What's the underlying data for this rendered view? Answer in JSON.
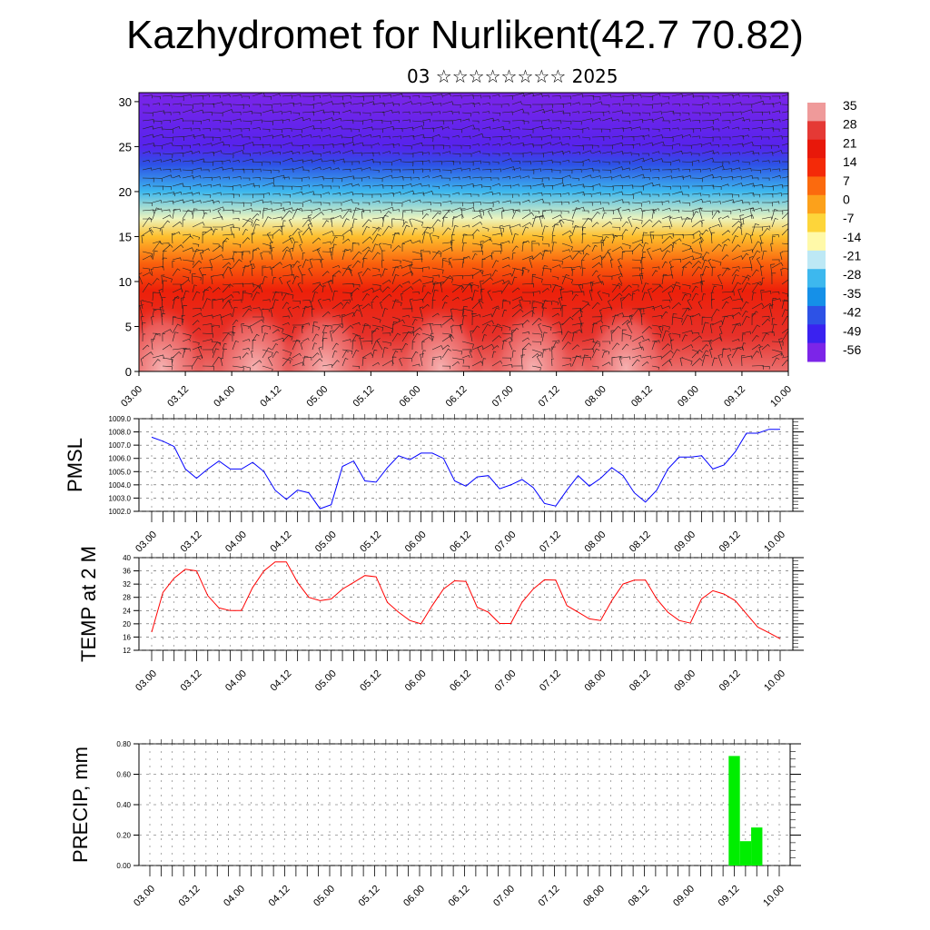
{
  "title": "Kazhydromet for Nurlikent(42.7 70.82)",
  "subtitle": "03 ☆☆☆☆☆☆☆☆ 2025",
  "chart_data": [
    {
      "type": "heatmap",
      "name": "vertical cross-section",
      "x_ticks": [
        "03.00",
        "03.12",
        "04.00",
        "04.12",
        "05.00",
        "05.12",
        "06.00",
        "06.12",
        "07.00",
        "07.12",
        "08.00",
        "08.12",
        "09.00",
        "09.12",
        "10.00"
      ],
      "ylim": [
        0,
        31
      ],
      "y_ticks": [
        "0",
        "5",
        "10",
        "15",
        "20",
        "25",
        "30"
      ],
      "colorbar": {
        "labels": [
          "35",
          "28",
          "21",
          "14",
          "7",
          "0",
          "-7",
          "-14",
          "-21",
          "-28",
          "-35",
          "-42",
          "-49",
          "-56"
        ],
        "colors": [
          "#ef9a9a",
          "#e53935",
          "#e8180a",
          "#f42a08",
          "#fb6a0e",
          "#fca11b",
          "#fdd53a",
          "#fff9a8",
          "#bde8f5",
          "#3db8ee",
          "#1590e8",
          "#2d52e6",
          "#3a22f0",
          "#7c25e8"
        ]
      },
      "temperature_bands": [
        {
          "height": 0,
          "value": 32
        },
        {
          "height": 4,
          "value": 26
        },
        {
          "height": 9,
          "value": 18
        },
        {
          "height": 12,
          "value": 8
        },
        {
          "height": 15,
          "value": -4
        },
        {
          "height": 17,
          "value": -16
        },
        {
          "height": 20,
          "value": -28
        },
        {
          "height": 23,
          "value": -42
        },
        {
          "height": 25,
          "value": -52
        },
        {
          "height": 31,
          "value": -58
        }
      ],
      "warm_cells_x": [
        "03.06",
        "04.06",
        "05.00",
        "06.06",
        "07.06",
        "08.06"
      ]
    },
    {
      "type": "line",
      "name": "PMSL",
      "ylabel": "PMSL",
      "ylim": [
        1002.0,
        1009.0
      ],
      "y_ticks": [
        "1002.0",
        "1003.0",
        "1004.0",
        "1005.0",
        "1006.0",
        "1007.0",
        "1008.0",
        "1009.0"
      ],
      "x_ticks": [
        "03.00",
        "03.12",
        "04.00",
        "04.12",
        "05.00",
        "05.12",
        "06.00",
        "06.12",
        "07.00",
        "07.12",
        "08.00",
        "08.12",
        "09.00",
        "09.12",
        "10.00"
      ],
      "color": "#0000ff",
      "values": [
        1007.6,
        1007.3,
        1006.9,
        1005.2,
        1004.5,
        1005.2,
        1005.8,
        1005.2,
        1005.2,
        1005.7,
        1005.0,
        1003.6,
        1002.9,
        1003.6,
        1003.4,
        1002.2,
        1002.5,
        1005.4,
        1005.8,
        1004.3,
        1004.2,
        1005.3,
        1006.2,
        1005.9,
        1006.4,
        1006.4,
        1006.0,
        1004.3,
        1003.9,
        1004.6,
        1004.7,
        1003.7,
        1004.0,
        1004.4,
        1003.8,
        1002.6,
        1002.4,
        1003.6,
        1004.7,
        1003.9,
        1004.5,
        1005.3,
        1004.7,
        1003.4,
        1002.7,
        1003.6,
        1005.2,
        1006.1,
        1006.1,
        1006.2,
        1005.2,
        1005.5,
        1006.5,
        1007.9,
        1007.9,
        1008.2,
        1008.2
      ]
    },
    {
      "type": "line",
      "name": "TEMP at 2 M",
      "ylabel": "TEMP at 2 M",
      "ylim": [
        12,
        40
      ],
      "y_ticks": [
        "12",
        "16",
        "20",
        "24",
        "28",
        "32",
        "36",
        "40"
      ],
      "x_ticks": [
        "03.00",
        "03.12",
        "04.00",
        "04.12",
        "05.00",
        "05.12",
        "06.00",
        "06.12",
        "07.00",
        "07.12",
        "08.00",
        "08.12",
        "09.00",
        "09.12",
        "10.00"
      ],
      "color": "#ff0000",
      "values": [
        17.5,
        29.5,
        33.8,
        36.5,
        36.0,
        28.5,
        24.8,
        24.0,
        24.0,
        31.0,
        36.0,
        38.7,
        38.7,
        32.5,
        28.0,
        27.0,
        27.5,
        30.5,
        32.5,
        34.6,
        34.2,
        26.5,
        23.5,
        21.0,
        20.0,
        25.5,
        30.5,
        33.0,
        32.8,
        25.0,
        23.5,
        20.1,
        20.1,
        26.5,
        30.5,
        33.3,
        33.2,
        25.5,
        23.5,
        21.5,
        21.0,
        27.0,
        32.0,
        33.2,
        33.2,
        27.5,
        23.5,
        21.0,
        20.2,
        27.5,
        30.0,
        29.0,
        27.0,
        23.0,
        19.0,
        17.3,
        15.5
      ]
    },
    {
      "type": "bar",
      "name": "PRECIP, mm",
      "ylabel": "PRECIP, mm",
      "ylim": [
        0,
        0.8
      ],
      "y_ticks": [
        "0.00",
        "0.20",
        "0.40",
        "0.60",
        "0.80"
      ],
      "x_ticks": [
        "03.00",
        "03.12",
        "04.00",
        "04.12",
        "05.00",
        "05.12",
        "06.00",
        "06.12",
        "07.00",
        "07.12",
        "08.00",
        "08.12",
        "09.00",
        "09.12",
        "10.00"
      ],
      "color": "#00ee00",
      "values": [
        0,
        0,
        0,
        0,
        0,
        0,
        0,
        0,
        0,
        0,
        0,
        0,
        0,
        0,
        0,
        0,
        0,
        0,
        0,
        0,
        0,
        0,
        0,
        0,
        0,
        0,
        0,
        0,
        0,
        0,
        0,
        0,
        0,
        0,
        0,
        0,
        0,
        0,
        0,
        0,
        0,
        0,
        0,
        0,
        0,
        0,
        0,
        0,
        0,
        0,
        0,
        0,
        0.72,
        0.16,
        0.25,
        0,
        0
      ]
    }
  ]
}
